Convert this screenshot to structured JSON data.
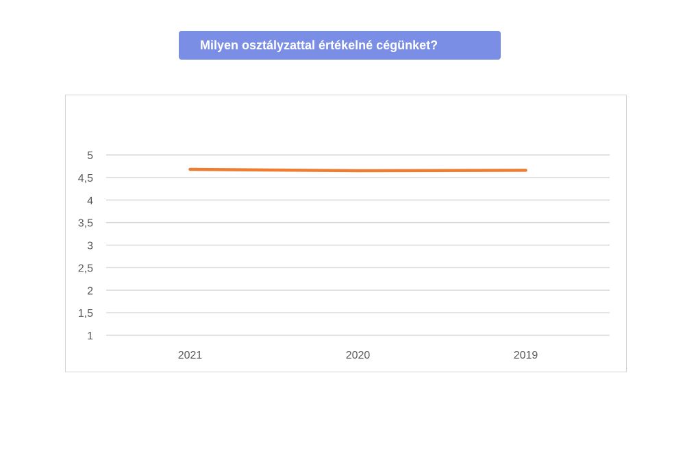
{
  "header": {
    "title": "Milyen osztályzattal értékelné cégünket?"
  },
  "chart_data": {
    "type": "line",
    "title": "Milyen osztályzattal értékelné cégünket?",
    "categories": [
      "2021",
      "2020",
      "2019"
    ],
    "series": [
      {
        "values": [
          4.68,
          4.65,
          4.66
        ],
        "color": "#ed7d31"
      }
    ],
    "ylim": [
      1,
      5
    ],
    "yticks": [
      "1",
      "1,5",
      "2",
      "2,5",
      "3",
      "3,5",
      "4",
      "4,5",
      "5"
    ],
    "xlabel": "",
    "ylabel": "",
    "grid": true,
    "gridColor": "#d9d9d9",
    "legend": "none"
  }
}
